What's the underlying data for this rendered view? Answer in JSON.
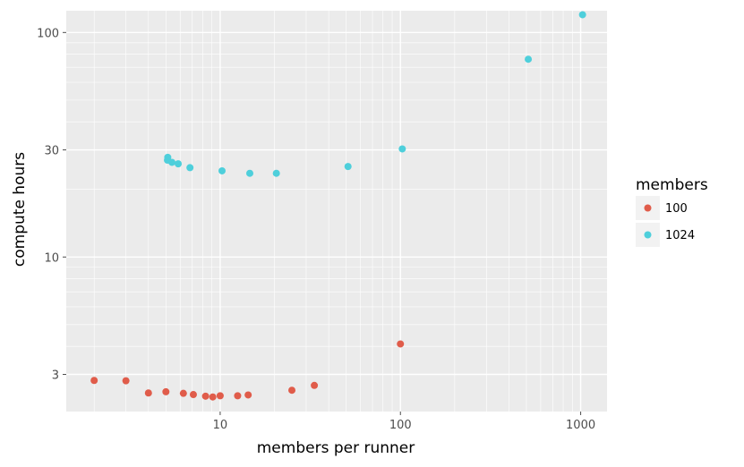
{
  "chart_data": {
    "type": "scatter",
    "title": "",
    "xlabel": "members per runner",
    "ylabel": "compute hours",
    "x_scale": "log",
    "y_scale": "log",
    "xlim": [
      1.4,
      1400
    ],
    "ylim": [
      2.05,
      125
    ],
    "x_ticks": [
      10,
      100,
      1000
    ],
    "x_tick_labels": [
      "10",
      "100",
      "1000"
    ],
    "y_ticks": [
      3,
      10,
      30,
      100
    ],
    "y_tick_labels": [
      "3",
      "10",
      "30",
      "100"
    ],
    "grid": true,
    "background": "#ebebeb",
    "legend": {
      "title": "members",
      "position": "right"
    },
    "series": [
      {
        "name": "100",
        "color": "#e05c4a",
        "points": [
          {
            "x": 2.0,
            "y": 2.82
          },
          {
            "x": 3.0,
            "y": 2.81
          },
          {
            "x": 4.0,
            "y": 2.48
          },
          {
            "x": 5.0,
            "y": 2.51
          },
          {
            "x": 6.25,
            "y": 2.47
          },
          {
            "x": 7.1,
            "y": 2.44
          },
          {
            "x": 8.3,
            "y": 2.4
          },
          {
            "x": 9.1,
            "y": 2.38
          },
          {
            "x": 10.0,
            "y": 2.41
          },
          {
            "x": 12.5,
            "y": 2.41
          },
          {
            "x": 14.3,
            "y": 2.43
          },
          {
            "x": 25.0,
            "y": 2.55
          },
          {
            "x": 33.3,
            "y": 2.68
          },
          {
            "x": 100.0,
            "y": 4.1
          }
        ]
      },
      {
        "name": "1024",
        "color": "#4ecfdb",
        "points": [
          {
            "x": 5.1,
            "y": 27.0
          },
          {
            "x": 5.12,
            "y": 27.8
          },
          {
            "x": 5.4,
            "y": 26.4
          },
          {
            "x": 5.85,
            "y": 26.0
          },
          {
            "x": 6.8,
            "y": 25.0
          },
          {
            "x": 10.24,
            "y": 24.2
          },
          {
            "x": 14.6,
            "y": 23.6
          },
          {
            "x": 20.5,
            "y": 23.6
          },
          {
            "x": 51.2,
            "y": 25.3
          },
          {
            "x": 102.4,
            "y": 30.3
          },
          {
            "x": 512.0,
            "y": 76.0
          },
          {
            "x": 1024.0,
            "y": 120.0
          }
        ]
      }
    ]
  }
}
